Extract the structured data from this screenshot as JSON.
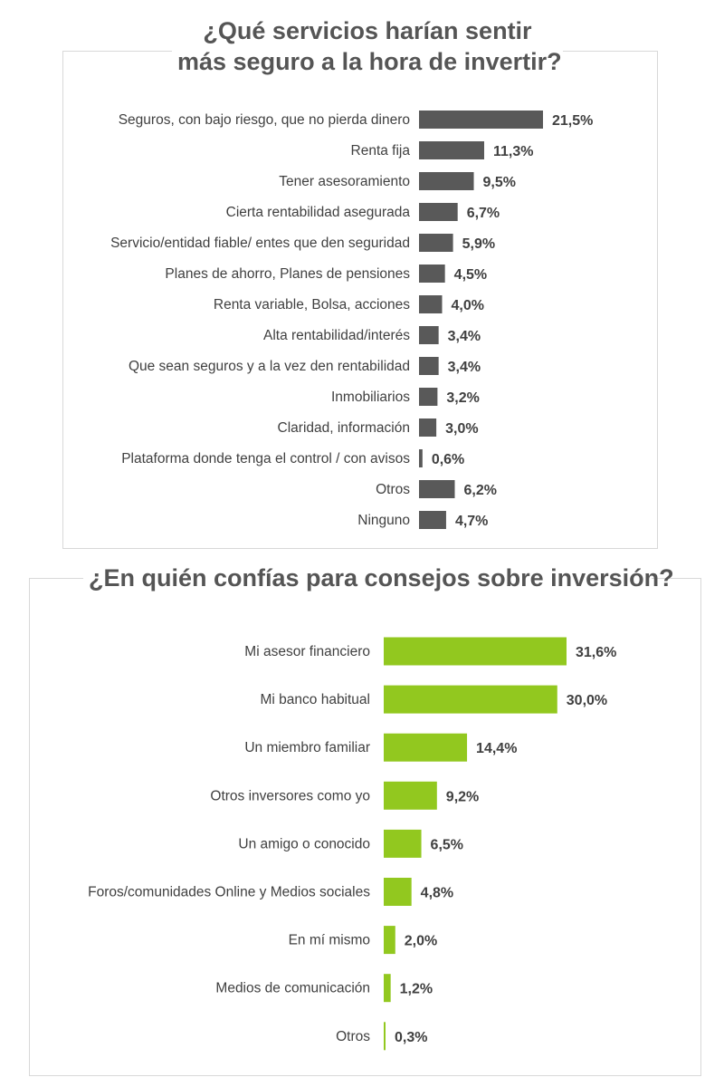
{
  "colors": {
    "bar_dark": "#595959",
    "bar_green": "#92c81f",
    "title_gray": "#555555",
    "panel_border": "#d8d8d8"
  },
  "chart_data": [
    {
      "type": "bar",
      "orientation": "horizontal",
      "title_lines": [
        "¿Qué servicios harían sentir",
        "más seguro a la hora de invertir?"
      ],
      "categories": [
        "Seguros, con bajo riesgo, que no pierda dinero",
        "Renta fija",
        "Tener asesoramiento",
        "Cierta rentabilidad asegurada",
        "Servicio/entidad fiable/ entes que den  seguridad",
        "Planes de ahorro, Planes de pensiones",
        "Renta variable, Bolsa, acciones",
        "Alta rentabilidad/interés",
        "Que sean seguros y a la vez den rentabilidad",
        "Inmobiliarios",
        "Claridad, información",
        "Plataforma donde tenga el control / con avisos",
        "Otros",
        "Ninguno"
      ],
      "values": [
        21.5,
        11.3,
        9.5,
        6.7,
        5.9,
        4.5,
        4.0,
        3.4,
        3.4,
        3.2,
        3.0,
        0.6,
        6.2,
        4.7
      ],
      "value_labels": [
        "21,5%",
        "11,3%",
        "9,5%",
        "6,7%",
        "5,9%",
        "4,5%",
        "4,0%",
        "3,4%",
        "3,4%",
        "3,2%",
        "3,0%",
        "0,6%",
        "6,2%",
        "4,7%"
      ],
      "unit": "%",
      "color": "#595959",
      "grid": false,
      "legend": "none"
    },
    {
      "type": "bar",
      "orientation": "horizontal",
      "title": "¿En quién confías para consejos sobre inversión?",
      "categories": [
        "Mi asesor financiero",
        "Mi banco habitual",
        "Un miembro familiar",
        "Otros inversores como yo",
        "Un amigo o conocido",
        "Foros/comunidades Online y Medios sociales",
        "En mí mismo",
        "Medios de comunicación",
        "Otros"
      ],
      "values": [
        31.6,
        30.0,
        14.4,
        9.2,
        6.5,
        4.8,
        2.0,
        1.2,
        0.3
      ],
      "value_labels": [
        "31,6%",
        "30,0%",
        "14,4%",
        "9,2%",
        "6,5%",
        "4,8%",
        "2,0%",
        "1,2%",
        "0,3%"
      ],
      "unit": "%",
      "color": "#92c81f",
      "grid": false,
      "legend": "none"
    }
  ]
}
